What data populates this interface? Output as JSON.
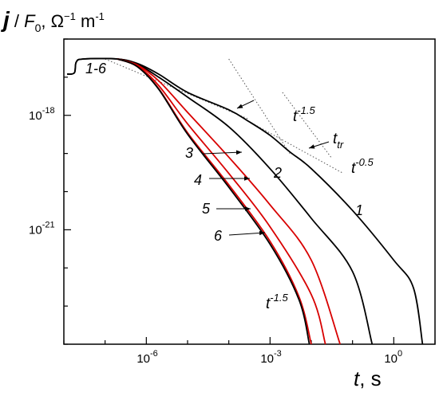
{
  "chart_data": {
    "type": "line",
    "axes": {
      "x": {
        "scale": "log",
        "range": [
          1e-08,
          10
        ],
        "ticks": [
          {
            "value": 1e-06,
            "base": "10",
            "exp": "-6"
          },
          {
            "value": 0.001,
            "base": "10",
            "exp": "-3"
          },
          {
            "value": 1,
            "base": "10",
            "exp": "0"
          }
        ]
      },
      "y": {
        "scale": "log",
        "range": [
          1e-24,
          1e-16
        ],
        "ticks": [
          {
            "value": 1e-18,
            "base": "10",
            "exp": "-18"
          },
          {
            "value": 1e-21,
            "base": "10",
            "exp": "-21"
          }
        ]
      }
    },
    "xlabel": {
      "var": "t",
      "unit": ", s"
    },
    "ylabel": {
      "j": "j",
      "sep": " / ",
      "F": "F",
      "sub": "0",
      "unitpre": ", Ω",
      "exp1": "−1",
      "mid": " m",
      "exp2": "-1"
    },
    "series": [
      {
        "label": "1",
        "color": "#000000",
        "points": [
          [
            1.2e-08,
            1.2e-17
          ],
          [
            1.8e-08,
            1.3e-17
          ],
          [
            2e-08,
            2.5e-17
          ],
          [
            3e-08,
            3e-17
          ],
          [
            2e-07,
            3e-17
          ],
          [
            6e-07,
            2.3e-17
          ],
          [
            2e-06,
            1.2e-17
          ],
          [
            1e-05,
            4e-18
          ],
          [
            0.0001,
            1.4e-18
          ],
          [
            0.0003,
            7e-19
          ],
          [
            0.001,
            3e-19
          ],
          [
            0.003,
            1.1e-19
          ],
          [
            0.01,
            4e-20
          ],
          [
            0.1,
            3.2e-21
          ],
          [
            1,
            1.6e-22
          ],
          [
            3,
            3e-23
          ],
          [
            5,
            1e-24
          ]
        ]
      },
      {
        "label": "2",
        "color": "#000000",
        "points": [
          [
            1.2e-08,
            1.2e-17
          ],
          [
            1.8e-08,
            1.3e-17
          ],
          [
            2e-08,
            2.5e-17
          ],
          [
            3e-08,
            3e-17
          ],
          [
            2e-07,
            3e-17
          ],
          [
            6e-07,
            2.2e-17
          ],
          [
            2e-06,
            1e-17
          ],
          [
            1e-05,
            3e-18
          ],
          [
            0.0001,
            5e-19
          ],
          [
            0.001,
            4e-20
          ],
          [
            0.01,
            2e-21
          ],
          [
            0.1,
            8e-23
          ],
          [
            0.3,
            1e-24
          ]
        ]
      },
      {
        "label": "3",
        "color": "#d80000",
        "points": [
          [
            2e-07,
            3e-17
          ],
          [
            6e-07,
            2.1e-17
          ],
          [
            2e-06,
            8e-18
          ],
          [
            1e-05,
            1.2e-18
          ],
          [
            0.0001,
            8e-20
          ],
          [
            0.001,
            4.5e-21
          ],
          [
            0.01,
            1.6e-22
          ],
          [
            0.05,
            1e-24
          ]
        ]
      },
      {
        "label": "4",
        "color": "#d80000",
        "points": [
          [
            2e-07,
            3e-17
          ],
          [
            6e-07,
            2e-17
          ],
          [
            2e-06,
            6e-18
          ],
          [
            1e-05,
            6e-19
          ],
          [
            0.0001,
            3e-20
          ],
          [
            0.001,
            1.2e-21
          ],
          [
            0.01,
            2e-23
          ],
          [
            0.022,
            1e-24
          ]
        ]
      },
      {
        "label": "5",
        "color": "#d80000",
        "points": [
          [
            2e-07,
            3e-17
          ],
          [
            6e-07,
            1.9e-17
          ],
          [
            2e-06,
            5e-18
          ],
          [
            1e-05,
            3.5e-19
          ],
          [
            0.0001,
            1.5e-20
          ],
          [
            0.001,
            5e-22
          ],
          [
            0.005,
            1.8e-23
          ],
          [
            0.01,
            1e-24
          ]
        ]
      },
      {
        "label": "6",
        "color": "#000000",
        "points": [
          [
            2e-07,
            3e-17
          ],
          [
            6e-07,
            1.9e-17
          ],
          [
            2e-06,
            4.8e-18
          ],
          [
            1e-05,
            3.2e-19
          ],
          [
            0.0001,
            1.3e-20
          ],
          [
            0.001,
            4.2e-22
          ],
          [
            0.005,
            1.5e-23
          ],
          [
            0.009,
            1e-24
          ]
        ]
      }
    ],
    "guides": [
      {
        "label": "t^-0.5 (upper)",
        "from": [
          1e-07,
          3e-17
        ],
        "to": [
          0.0003,
          8e-19
        ]
      },
      {
        "label": "t^-1.5 (upper)",
        "from": [
          0.0001,
          3e-17
        ],
        "to": [
          0.003,
          1e-19
        ]
      },
      {
        "label": "t^-0.5 (right)",
        "from": [
          0.0003,
          7e-19
        ],
        "to": [
          0.06,
          3e-20
        ]
      },
      {
        "label": "t^-1.5 (right)",
        "from": [
          0.002,
          4e-18
        ],
        "to": [
          0.03,
          8e-20
        ]
      }
    ],
    "annotations": {
      "group": "1-6",
      "curves": [
        "1",
        "2",
        "3",
        "4",
        "5",
        "6"
      ],
      "slope_a": {
        "base": "t",
        "exp": "-1.5"
      },
      "slope_b": {
        "base": "t",
        "exp": "-0.5"
      },
      "slope_c": {
        "base": "t",
        "exp": "-1.5"
      },
      "ttr": {
        "base": "t",
        "sub": "tr"
      }
    },
    "grid": false,
    "legend": "none"
  }
}
